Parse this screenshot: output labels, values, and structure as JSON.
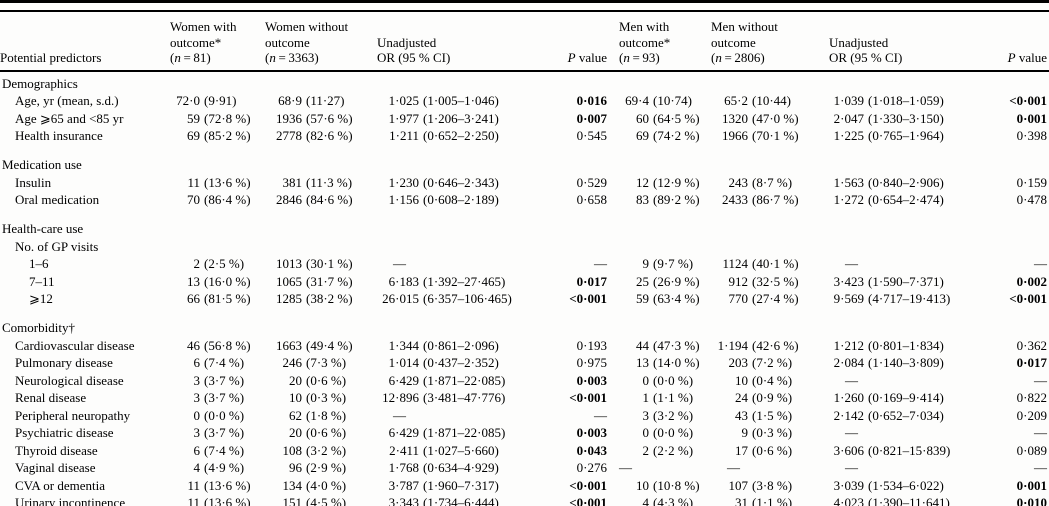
{
  "table": {
    "predictors_header": "Potential predictors",
    "header_groups": [
      {
        "with_lines": [
          "Women with",
          "outcome*",
          "(n=81)"
        ],
        "without_lines": [
          "Women without",
          "outcome",
          "(n=3363)"
        ],
        "or_lines": [
          "Unadjusted",
          "OR (95 % CI)"
        ],
        "p_label": "P value"
      },
      {
        "with_lines": [
          "Men with",
          "outcome*",
          "(n=93)"
        ],
        "without_lines": [
          "Men without",
          "outcome",
          "(n=2806)"
        ],
        "or_lines": [
          "Unadjusted",
          "OR (95 % CI)"
        ],
        "p_label": "P value"
      }
    ],
    "rows": [
      {
        "type": "section",
        "label": "Demographics",
        "indent": 0
      },
      {
        "type": "data",
        "label": "Age, yr (mean, s.d.)",
        "indent": 1,
        "cells": [
          "72·0 (9·91)",
          "68·9 (11·27)",
          "1·025 (1·005–1·046)",
          "0·016",
          "69·4 (10·74)",
          "65·2 (10·44)",
          "1·039 (1·018–1·059)",
          "<0·001"
        ],
        "boldP": [
          true,
          true
        ]
      },
      {
        "type": "data",
        "label": "Age ⩾65 and <85 yr",
        "indent": 1,
        "cells": [
          "59 (72·8 %)",
          "1936 (57·6 %)",
          "1·977 (1·206–3·241)",
          "0·007",
          "60 (64·5 %)",
          "1320 (47·0 %)",
          "2·047 (1·330–3·150)",
          "0·001"
        ],
        "boldP": [
          true,
          true
        ]
      },
      {
        "type": "data",
        "label": "Health insurance",
        "indent": 1,
        "cells": [
          "69 (85·2 %)",
          "2778 (82·6 %)",
          "1·211 (0·652–2·250)",
          "0·545",
          "69 (74·2 %)",
          "1966 (70·1 %)",
          "1·225 (0·765–1·964)",
          "0·398"
        ],
        "boldP": [
          false,
          false
        ]
      },
      {
        "type": "section",
        "label": "Medication use",
        "indent": 0
      },
      {
        "type": "data",
        "label": "Insulin",
        "indent": 1,
        "cells": [
          "11 (13·6 %)",
          "381 (11·3 %)",
          "1·230 (0·646–2·343)",
          "0·529",
          "12 (12·9 %)",
          "243 (8·7 %)",
          "1·563 (0·840–2·906)",
          "0·159"
        ],
        "boldP": [
          false,
          false
        ]
      },
      {
        "type": "data",
        "label": "Oral medication",
        "indent": 1,
        "cells": [
          "70 (86·4 %)",
          "2846 (84·6 %)",
          "1·156 (0·608–2·189)",
          "0·658",
          "83 (89·2 %)",
          "2433 (86·7 %)",
          "1·272 (0·654–2·474)",
          "0·478"
        ],
        "boldP": [
          false,
          false
        ]
      },
      {
        "type": "section",
        "label": "Health-care use",
        "indent": 0
      },
      {
        "type": "section",
        "label": "No. of GP visits",
        "indent": 1,
        "nogap": true
      },
      {
        "type": "data",
        "label": "1–6",
        "indent": 2,
        "cells": [
          "2 (2·5 %)",
          "1013 (30·1 %)",
          "—",
          "—",
          "9 (9·7 %)",
          "1124 (40·1 %)",
          "—",
          "—"
        ],
        "boldP": [
          false,
          false
        ]
      },
      {
        "type": "data",
        "label": "7–11",
        "indent": 2,
        "cells": [
          "13 (16·0 %)",
          "1065 (31·7 %)",
          "6·183 (1·392–27·465)",
          "0·017",
          "25 (26·9 %)",
          "912 (32·5 %)",
          "3·423 (1·590–7·371)",
          "0·002"
        ],
        "boldP": [
          true,
          true
        ]
      },
      {
        "type": "data",
        "label": "⩾12",
        "indent": 2,
        "cells": [
          "66 (81·5 %)",
          "1285 (38·2 %)",
          "26·015 (6·357–106·465)",
          "<0·001",
          "59 (63·4 %)",
          "770 (27·4 %)",
          "9·569 (4·717–19·413)",
          "<0·001"
        ],
        "boldP": [
          true,
          true
        ]
      },
      {
        "type": "section",
        "label": "Comorbidity†",
        "indent": 0
      },
      {
        "type": "data",
        "label": "Cardiovascular disease",
        "indent": 1,
        "cells": [
          "46 (56·8 %)",
          "1663 (49·4 %)",
          "1·344 (0·861–2·096)",
          "0·193",
          "44 (47·3 %)",
          "1·194 (42·6 %)",
          "1·212 (0·801–1·834)",
          "0·362"
        ],
        "boldP": [
          false,
          false
        ]
      },
      {
        "type": "data",
        "label": "Pulmonary disease",
        "indent": 1,
        "cells": [
          "6 (7·4 %)",
          "246 (7·3 %)",
          "1·014 (0·437–2·352)",
          "0·975",
          "13 (14·0 %)",
          "203 (7·2 %)",
          "2·084 (1·140–3·809)",
          "0·017"
        ],
        "boldP": [
          false,
          true
        ]
      },
      {
        "type": "data",
        "label": "Neurological disease",
        "indent": 1,
        "cells": [
          "3 (3·7 %)",
          "20 (0·6 %)",
          "6·429 (1·871–22·085)",
          "0·003",
          "0 (0·0 %)",
          "10 (0·4 %)",
          "—",
          "—"
        ],
        "boldP": [
          true,
          false
        ]
      },
      {
        "type": "data",
        "label": "Renal disease",
        "indent": 1,
        "cells": [
          "3 (3·7 %)",
          "10 (0·3 %)",
          "12·896 (3·481–47·776)",
          "<0·001",
          "1 (1·1 %)",
          "24 (0·9 %)",
          "1·260 (0·169–9·414)",
          "0·822"
        ],
        "boldP": [
          true,
          false
        ]
      },
      {
        "type": "data",
        "label": "Peripheral neuropathy",
        "indent": 1,
        "cells": [
          "0 (0·0 %)",
          "62 (1·8 %)",
          "—",
          "—",
          "3 (3·2 %)",
          "43 (1·5 %)",
          "2·142 (0·652–7·034)",
          "0·209"
        ],
        "boldP": [
          false,
          false
        ]
      },
      {
        "type": "data",
        "label": "Psychiatric disease",
        "indent": 1,
        "cells": [
          "3 (3·7 %)",
          "20 (0·6 %)",
          "6·429 (1·871–22·085)",
          "0·003",
          "0 (0·0 %)",
          "9 (0·3 %)",
          "—",
          "—"
        ],
        "boldP": [
          true,
          false
        ]
      },
      {
        "type": "data",
        "label": "Thyroid disease",
        "indent": 1,
        "cells": [
          "6 (7·4 %)",
          "108 (3·2 %)",
          "2·411 (1·027–5·660)",
          "0·043",
          "2 (2·2 %)",
          "17 (0·6 %)",
          "3·606 (0·821–15·839)",
          "0·089"
        ],
        "boldP": [
          true,
          false
        ]
      },
      {
        "type": "data",
        "label": "Vaginal disease",
        "indent": 1,
        "cells": [
          "4 (4·9 %)",
          "96 (2·9 %)",
          "1·768 (0·634–4·929)",
          "0·276",
          "—",
          "—",
          "—",
          "—"
        ],
        "boldP": [
          false,
          false
        ]
      },
      {
        "type": "data",
        "label": "CVA or dementia",
        "indent": 1,
        "cells": [
          "11 (13·6 %)",
          "134 (4·0 %)",
          "3·787 (1·960–7·317)",
          "<0·001",
          "10 (10·8 %)",
          "107 (3·8 %)",
          "3·039 (1·534–6·022)",
          "0·001"
        ],
        "boldP": [
          true,
          true
        ]
      },
      {
        "type": "data",
        "label": "Urinary incontinence",
        "indent": 1,
        "cells": [
          "11 (13·6 %)",
          "151 (4·5 %)",
          "3·343 (1·734–6·444)",
          "<0·001",
          "4 (4·3 %)",
          "31 (1·1 %)",
          "4·023 (1·390–11·641)",
          "0·010"
        ],
        "boldP": [
          true,
          true
        ]
      }
    ]
  }
}
